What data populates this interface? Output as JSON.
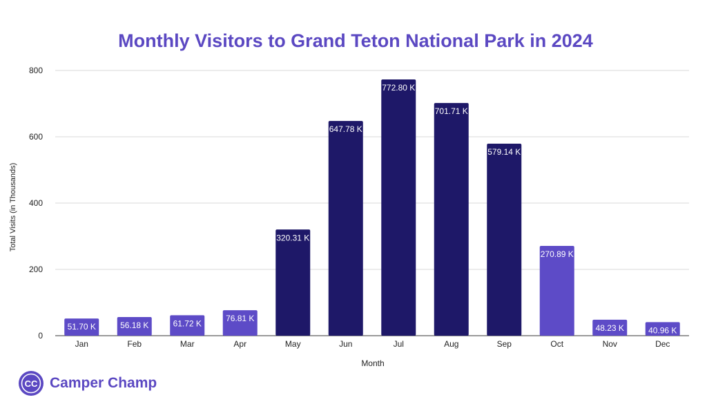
{
  "colors": {
    "peak": "#1e1868",
    "off_peak": "#5d4bc7",
    "title": "#5b48c2",
    "grid": "#d9d9d9",
    "axis_text": "#222222",
    "label_text": "#ffffff",
    "brand": "#5b48c2"
  },
  "brand": {
    "name": "Camper Champ",
    "logo_text": "CC"
  },
  "chart_data": {
    "type": "bar",
    "title": "Monthly Visitors to Grand Teton National Park in 2024",
    "xlabel": "Month",
    "ylabel": "Total Visits (in Thousands)",
    "ylim": [
      0,
      800
    ],
    "yticks": [
      0,
      200,
      400,
      600,
      800
    ],
    "grid": true,
    "categories": [
      "Jan",
      "Feb",
      "Mar",
      "Apr",
      "May",
      "Jun",
      "Jul",
      "Aug",
      "Sep",
      "Oct",
      "Nov",
      "Dec"
    ],
    "values": [
      51.7,
      56.18,
      61.72,
      76.81,
      320.31,
      647.78,
      772.8,
      701.71,
      579.14,
      270.89,
      48.23,
      40.96
    ],
    "value_labels": [
      "51.70 K",
      "56.18 K",
      "61.72 K",
      "76.81 K",
      "320.31 K",
      "647.78 K",
      "772.80 K",
      "701.71 K",
      "579.14 K",
      "270.89 K",
      "48.23 K",
      "40.96 K"
    ],
    "bar_colors": [
      "off_peak",
      "off_peak",
      "off_peak",
      "off_peak",
      "peak",
      "peak",
      "peak",
      "peak",
      "peak",
      "off_peak",
      "off_peak",
      "off_peak"
    ]
  }
}
